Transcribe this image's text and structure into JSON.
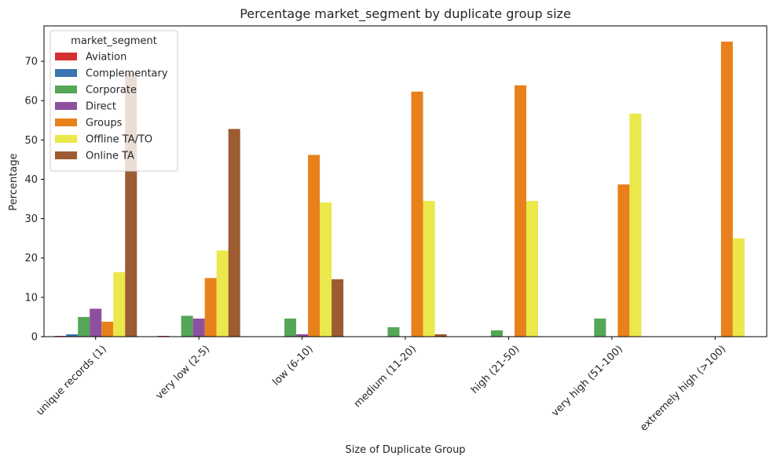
{
  "chart_data": {
    "type": "bar",
    "title": "Percentage market_segment by duplicate group size",
    "xlabel": "Size of Duplicate Group",
    "ylabel": "Percentage",
    "ylim": [
      0,
      79
    ],
    "yticks": [
      0,
      10,
      20,
      30,
      40,
      50,
      60,
      70
    ],
    "grid": false,
    "legend": {
      "title": "market_segment",
      "placement": "top-left"
    },
    "categories": [
      "unique records (1)",
      "very low (2-5)",
      "low (6-10)",
      "medium (11-20)",
      "high (21-50)",
      "very high (51-100)",
      "extremely high (>100)"
    ],
    "series": [
      {
        "name": "Aviation",
        "color": "#d62f2f",
        "values": [
          0.2,
          0.2,
          0,
          0,
          0,
          0,
          0
        ]
      },
      {
        "name": "Complementary",
        "color": "#3a76af",
        "values": [
          0.6,
          0.1,
          0,
          0,
          0,
          0,
          0
        ]
      },
      {
        "name": "Corporate",
        "color": "#55a656",
        "values": [
          5.0,
          5.3,
          4.6,
          2.4,
          1.6,
          4.6,
          0
        ]
      },
      {
        "name": "Direct",
        "color": "#8d509e",
        "values": [
          7.1,
          4.6,
          0.6,
          0,
          0,
          0,
          0
        ]
      },
      {
        "name": "Groups",
        "color": "#e8811c",
        "values": [
          3.8,
          14.9,
          46.2,
          62.3,
          63.9,
          38.7,
          75.0
        ]
      },
      {
        "name": "Offline TA/TO",
        "color": "#eae84a",
        "values": [
          16.4,
          21.9,
          34.1,
          34.5,
          34.5,
          56.7,
          25.0
        ]
      },
      {
        "name": "Online TA",
        "color": "#9d5b32",
        "values": [
          67.0,
          52.8,
          14.6,
          0.6,
          0,
          0,
          0
        ]
      }
    ]
  }
}
